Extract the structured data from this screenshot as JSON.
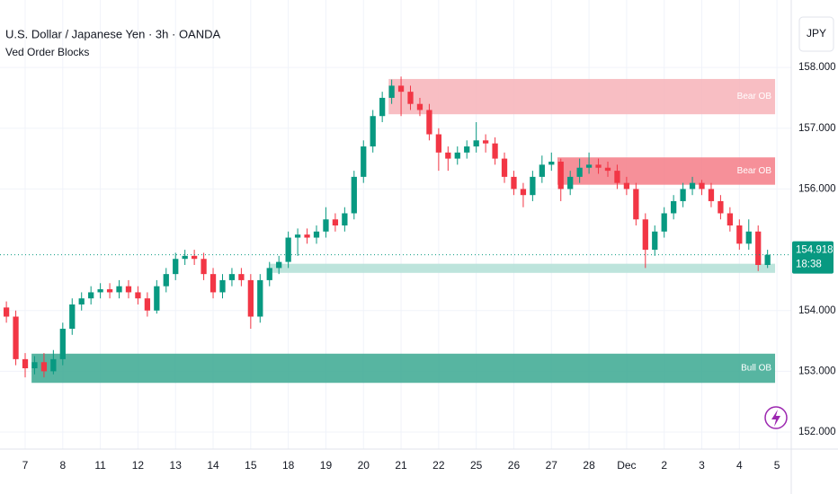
{
  "chart_data": {
    "type": "candlestick",
    "title": "U.S. Dollar / Japanese Yen · 3h · OANDA",
    "subtitle": "Ved Order Blocks",
    "currency": "JPY",
    "up_color": "#089981",
    "down_color": "#f23645",
    "grid": true,
    "xlim": [
      -0.67,
      20.38
    ],
    "ylim": [
      151.72,
      159.11
    ],
    "xticks": [
      {
        "value": 0,
        "label": "7"
      },
      {
        "value": 1,
        "label": "8"
      },
      {
        "value": 2,
        "label": "11"
      },
      {
        "value": 3,
        "label": "12"
      },
      {
        "value": 4,
        "label": "13"
      },
      {
        "value": 5,
        "label": "14"
      },
      {
        "value": 6,
        "label": "15"
      },
      {
        "value": 7,
        "label": "18"
      },
      {
        "value": 8,
        "label": "19"
      },
      {
        "value": 9,
        "label": "20"
      },
      {
        "value": 10,
        "label": "21"
      },
      {
        "value": 11,
        "label": "22"
      },
      {
        "value": 12,
        "label": "25"
      },
      {
        "value": 13,
        "label": "26"
      },
      {
        "value": 14,
        "label": "27"
      },
      {
        "value": 15,
        "label": "28"
      },
      {
        "value": 16,
        "label": "Dec"
      },
      {
        "value": 17,
        "label": "2"
      },
      {
        "value": 18,
        "label": "3"
      },
      {
        "value": 19,
        "label": "4"
      },
      {
        "value": 20,
        "label": "5"
      }
    ],
    "yticks": [
      {
        "value": 152,
        "label": "152.000"
      },
      {
        "value": 153,
        "label": "153.000"
      },
      {
        "value": 154,
        "label": "154.000"
      },
      {
        "value": 156,
        "label": "156.000"
      },
      {
        "value": 157,
        "label": "157.000"
      },
      {
        "value": 158,
        "label": "158.000"
      }
    ],
    "x": [
      -0.5,
      -0.25,
      0,
      0.25,
      0.5,
      0.75,
      1,
      1.25,
      1.5,
      1.75,
      2,
      2.25,
      2.5,
      2.75,
      3,
      3.25,
      3.5,
      3.75,
      4,
      4.25,
      4.5,
      4.75,
      5,
      5.25,
      5.5,
      5.75,
      6,
      6.25,
      6.5,
      6.75,
      7,
      7.25,
      7.5,
      7.75,
      8,
      8.25,
      8.5,
      8.75,
      9,
      9.25,
      9.5,
      9.75,
      10,
      10.25,
      10.5,
      10.75,
      11,
      11.25,
      11.5,
      11.75,
      12,
      12.25,
      12.5,
      12.75,
      13,
      13.25,
      13.5,
      13.75,
      14,
      14.25,
      14.5,
      14.75,
      15,
      15.25,
      15.5,
      15.75,
      16,
      16.25,
      16.5,
      16.75,
      17,
      17.25,
      17.5,
      17.75,
      18,
      18.25,
      18.5,
      18.75,
      19,
      19.25,
      19.5,
      19.75
    ],
    "open": [
      154.05,
      153.9,
      153.2,
      153.05,
      153.15,
      153.0,
      153.2,
      153.7,
      154.1,
      154.2,
      154.3,
      154.35,
      154.3,
      154.4,
      154.3,
      154.2,
      154.0,
      154.4,
      154.6,
      154.85,
      154.9,
      154.85,
      154.6,
      154.3,
      154.5,
      154.6,
      154.5,
      153.9,
      154.5,
      154.7,
      154.8,
      155.2,
      155.25,
      155.2,
      155.3,
      155.5,
      155.4,
      155.6,
      156.2,
      156.7,
      157.2,
      157.5,
      157.7,
      157.6,
      157.4,
      157.3,
      156.9,
      156.6,
      156.5,
      156.6,
      156.7,
      156.8,
      156.75,
      156.5,
      156.2,
      156.0,
      155.9,
      156.2,
      156.4,
      156.45,
      156.0,
      156.2,
      156.35,
      156.4,
      156.35,
      156.3,
      156.1,
      156.0,
      155.5,
      155.0,
      155.3,
      155.6,
      155.8,
      156.0,
      156.1,
      156.0,
      155.8,
      155.6,
      155.4,
      155.1,
      155.3,
      154.75
    ],
    "high": [
      154.15,
      154.0,
      153.3,
      153.25,
      153.3,
      153.35,
      153.8,
      154.2,
      154.3,
      154.4,
      154.45,
      154.45,
      154.5,
      154.5,
      154.4,
      154.3,
      154.5,
      154.7,
      154.95,
      155.0,
      155.0,
      154.95,
      154.7,
      154.6,
      154.7,
      154.7,
      154.6,
      154.6,
      154.8,
      154.9,
      155.3,
      155.35,
      155.35,
      155.4,
      155.7,
      155.6,
      155.7,
      156.3,
      156.8,
      157.3,
      157.6,
      157.8,
      157.85,
      157.7,
      157.5,
      157.4,
      157.0,
      156.7,
      156.7,
      156.8,
      157.1,
      156.9,
      156.85,
      156.6,
      156.3,
      156.1,
      156.3,
      156.55,
      156.6,
      156.5,
      156.3,
      156.5,
      156.6,
      156.5,
      156.45,
      156.4,
      156.2,
      156.1,
      155.6,
      155.4,
      155.7,
      155.9,
      156.1,
      156.2,
      156.15,
      156.1,
      155.9,
      155.7,
      155.5,
      155.5,
      155.4,
      155.0
    ],
    "low": [
      153.8,
      153.1,
      152.9,
      152.95,
      152.9,
      152.95,
      153.1,
      153.6,
      154.0,
      154.1,
      154.2,
      154.2,
      154.2,
      154.2,
      154.1,
      153.9,
      153.95,
      154.3,
      154.5,
      154.75,
      154.75,
      154.5,
      154.2,
      154.2,
      154.4,
      154.4,
      153.7,
      153.8,
      154.4,
      154.6,
      154.7,
      154.9,
      155.1,
      155.1,
      155.2,
      155.3,
      155.3,
      155.5,
      156.1,
      156.6,
      157.1,
      157.4,
      157.2,
      157.3,
      157.2,
      156.8,
      156.3,
      156.3,
      156.4,
      156.5,
      156.6,
      156.6,
      156.4,
      156.1,
      155.9,
      155.7,
      155.8,
      156.1,
      156.3,
      155.8,
      155.9,
      156.1,
      156.25,
      156.25,
      156.2,
      156.0,
      155.9,
      155.4,
      154.7,
      154.9,
      155.2,
      155.5,
      155.7,
      155.9,
      155.9,
      155.7,
      155.5,
      155.3,
      155.0,
      155.0,
      154.65,
      154.7
    ],
    "close": [
      153.9,
      153.2,
      153.05,
      153.15,
      153.0,
      153.2,
      153.7,
      154.1,
      154.2,
      154.3,
      154.35,
      154.3,
      154.4,
      154.3,
      154.2,
      154.0,
      154.4,
      154.6,
      154.85,
      154.9,
      154.85,
      154.6,
      154.3,
      154.5,
      154.6,
      154.5,
      153.9,
      154.5,
      154.7,
      154.8,
      155.2,
      155.25,
      155.2,
      155.3,
      155.5,
      155.4,
      155.6,
      156.2,
      156.7,
      157.2,
      157.5,
      157.7,
      157.6,
      157.4,
      157.3,
      156.9,
      156.6,
      156.5,
      156.6,
      156.7,
      156.8,
      156.75,
      156.5,
      156.2,
      156.0,
      155.9,
      156.2,
      156.4,
      156.45,
      156.0,
      156.2,
      156.35,
      156.4,
      156.35,
      156.3,
      156.1,
      156.0,
      155.5,
      155.0,
      155.3,
      155.6,
      155.8,
      156.0,
      156.1,
      156.0,
      155.8,
      155.6,
      155.4,
      155.1,
      155.3,
      154.75,
      154.918
    ],
    "order_blocks": [
      {
        "label": "Bear OB",
        "x_start": 9.67,
        "x_end": 19.95,
        "top": 157.81,
        "bottom": 157.23,
        "color": "#f7b3b8"
      },
      {
        "label": "Bear OB",
        "x_start": 14.16,
        "x_end": 19.95,
        "top": 156.52,
        "bottom": 156.07,
        "color": "#f57c87"
      },
      {
        "x_start": 6.5,
        "x_end": 19.95,
        "top": 154.77,
        "bottom": 154.62,
        "color": "#b2dfd6"
      },
      {
        "label": "Bull OB",
        "x_start": 0.17,
        "x_end": 19.95,
        "top": 153.29,
        "bottom": 152.81,
        "color": "#3aa890"
      }
    ],
    "last_price": 154.918,
    "countdown": "18:38"
  }
}
